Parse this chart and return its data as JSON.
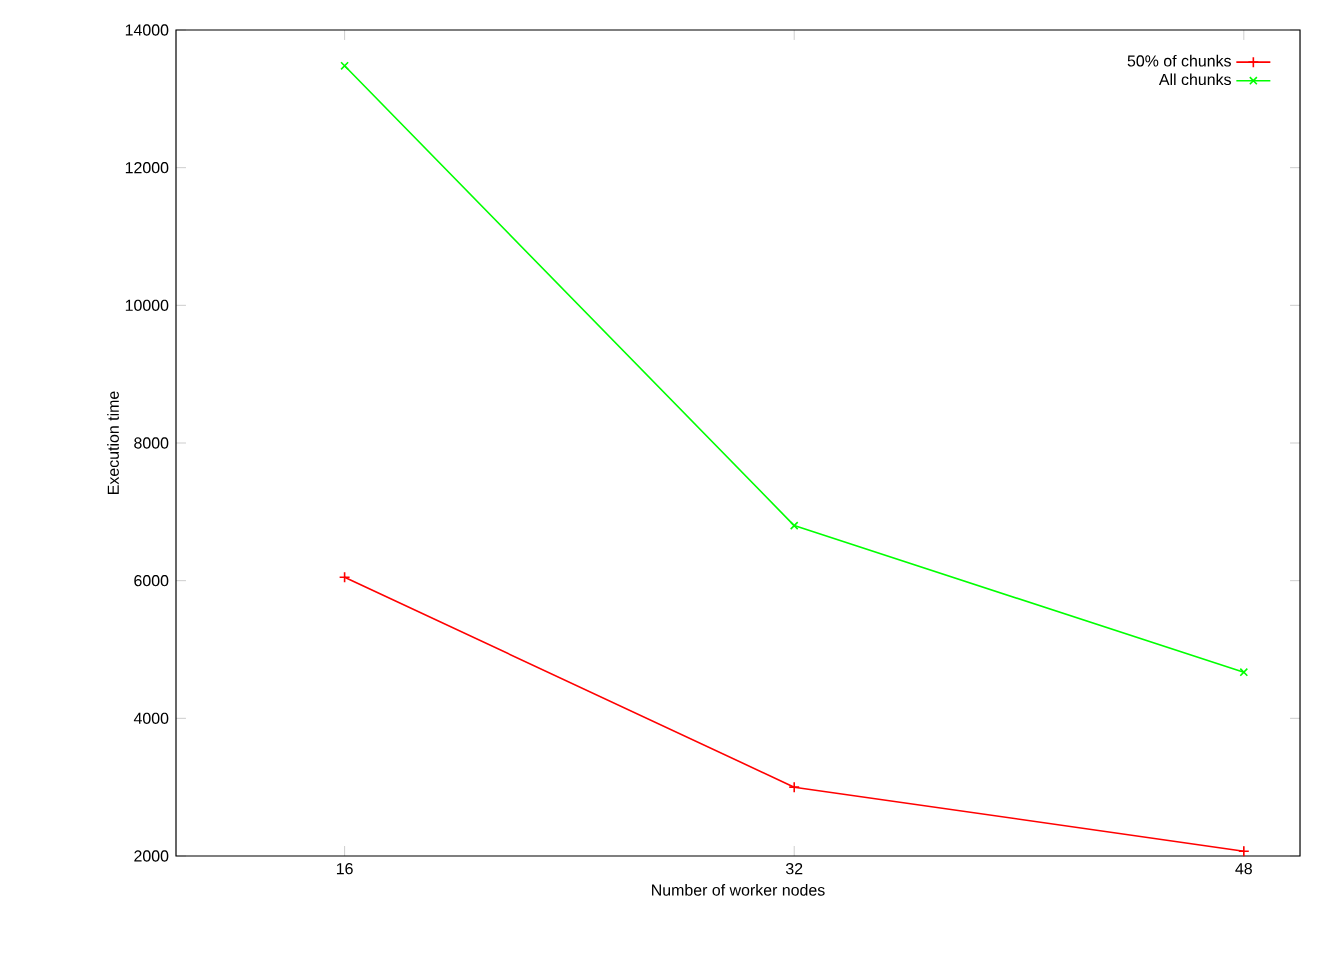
{
  "chart_data": {
    "type": "line",
    "xlabel": "Number of worker nodes",
    "ylabel": "Execution time",
    "x": [
      16,
      32,
      48
    ],
    "series": [
      {
        "name": "50% of chunks",
        "color": "#ff0000",
        "marker": "plus",
        "values": [
          6050,
          3000,
          2070
        ]
      },
      {
        "name": "All chunks",
        "color": "#00ff00",
        "marker": "cross",
        "values": [
          13480,
          6800,
          4670
        ]
      }
    ],
    "xlim": [
      10,
      50
    ],
    "xticks": [
      16,
      32,
      48
    ],
    "ylim": [
      2000,
      14000
    ],
    "yticks": [
      2000,
      4000,
      6000,
      8000,
      10000,
      12000,
      14000
    ],
    "grid": false,
    "legend": "top right"
  }
}
